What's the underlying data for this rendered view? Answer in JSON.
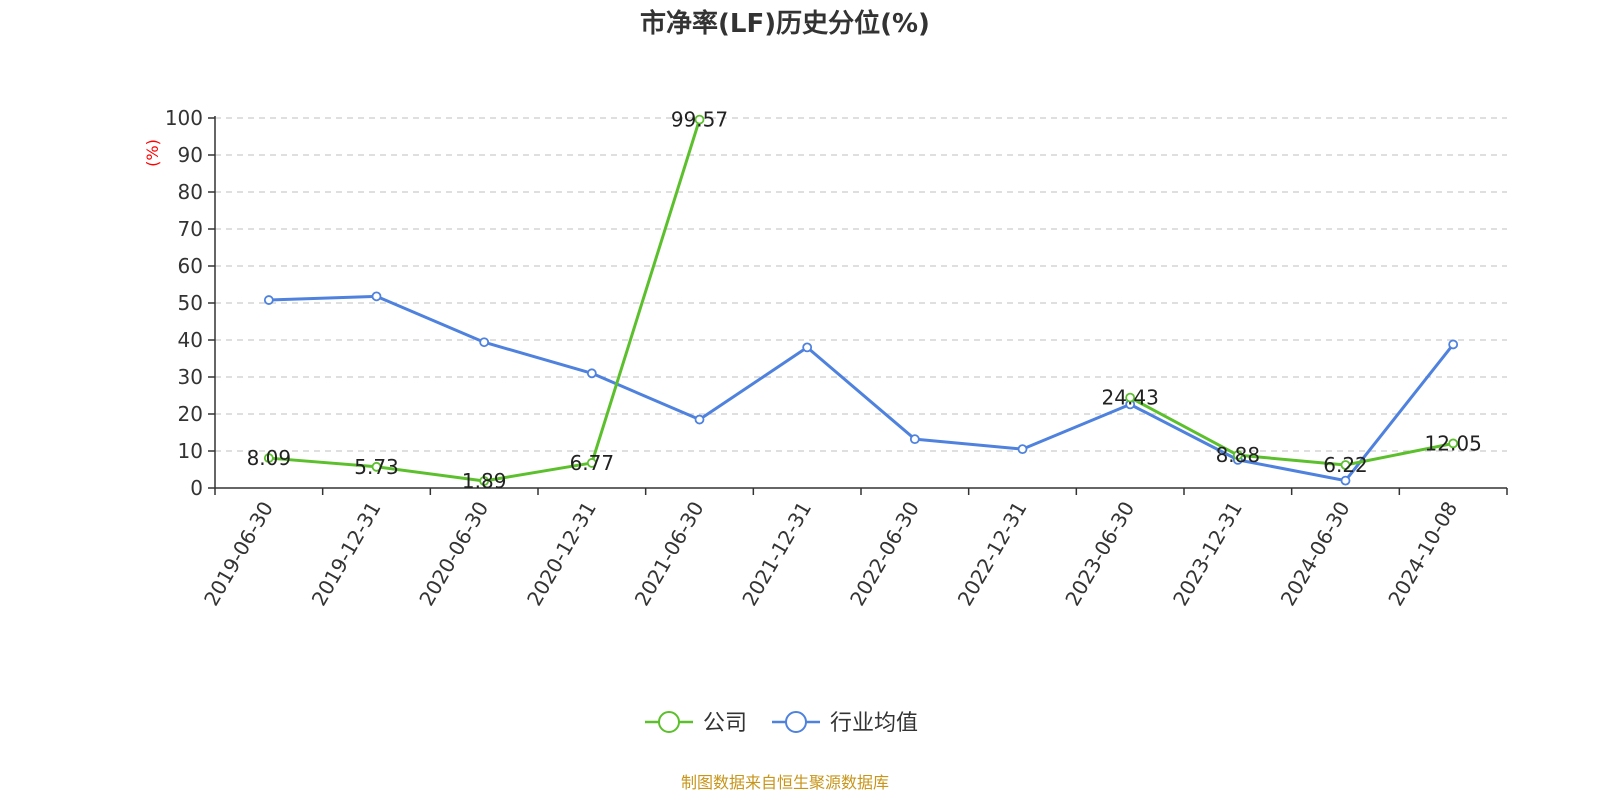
{
  "chart_data": {
    "type": "line",
    "title": "市净率(LF)历史分位(%)",
    "ylabel": "(%)",
    "ylim": [
      0,
      100
    ],
    "yticks": [
      0,
      10,
      20,
      30,
      40,
      50,
      60,
      70,
      80,
      90,
      100
    ],
    "grid": true,
    "legend_position": "bottom",
    "categories": [
      "2019-06-30",
      "2019-12-31",
      "2020-06-30",
      "2020-12-31",
      "2021-06-30",
      "2021-12-31",
      "2022-06-30",
      "2022-12-31",
      "2023-06-30",
      "2023-12-31",
      "2024-06-30",
      "2024-10-08"
    ],
    "series": [
      {
        "name": "公司",
        "color": "#5cc02d",
        "values": [
          8.09,
          5.73,
          1.89,
          6.77,
          99.57,
          null,
          null,
          null,
          24.43,
          8.88,
          6.22,
          12.05
        ],
        "labels": [
          "8.09",
          "5.73",
          "1.89",
          "6.77",
          "99.57",
          "",
          "",
          "",
          "24.43",
          "8.88",
          "6.22",
          "12.05"
        ]
      },
      {
        "name": "行业均值",
        "color": "#4e82de",
        "values": [
          50.8,
          51.8,
          39.4,
          31.0,
          18.5,
          38.0,
          13.2,
          10.5,
          22.6,
          7.6,
          2.0,
          38.8
        ]
      }
    ]
  },
  "source": "制图数据来自恒生聚源数据库",
  "colors": {
    "axis_label": "#ff0000",
    "source": "#c8951a",
    "grid": "#cccccc"
  }
}
